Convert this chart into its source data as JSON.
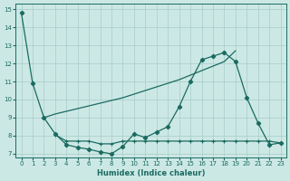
{
  "xlabel": "Humidex (Indice chaleur)",
  "bg_color": "#cce8e5",
  "grid_color": "#a8ccc9",
  "line_color": "#1a6b60",
  "xlim": [
    -0.5,
    23.5
  ],
  "ylim": [
    6.8,
    15.3
  ],
  "xticks": [
    0,
    1,
    2,
    3,
    4,
    5,
    6,
    7,
    8,
    9,
    10,
    11,
    12,
    13,
    14,
    15,
    16,
    17,
    18,
    19,
    20,
    21,
    22,
    23
  ],
  "yticks": [
    7,
    8,
    9,
    10,
    11,
    12,
    13,
    14,
    15
  ],
  "series1_x": [
    0,
    1,
    2,
    3,
    4,
    5,
    6,
    7,
    8,
    9,
    10,
    11,
    12,
    13,
    14,
    15,
    16,
    17,
    18,
    19,
    20,
    21,
    22,
    23
  ],
  "series1_y": [
    14.8,
    10.9,
    9.0,
    8.1,
    7.5,
    7.35,
    7.25,
    7.1,
    7.0,
    7.4,
    8.1,
    7.9,
    8.2,
    8.5,
    9.6,
    11.0,
    12.2,
    12.4,
    12.6,
    12.1,
    10.1,
    8.7,
    7.5,
    7.6
  ],
  "series2_x": [
    2,
    3,
    4,
    5,
    6,
    7,
    8,
    9,
    10,
    11,
    12,
    13,
    14,
    15,
    16,
    17,
    18,
    19
  ],
  "series2_y": [
    9.0,
    9.2,
    9.35,
    9.5,
    9.65,
    9.8,
    9.95,
    10.1,
    10.3,
    10.5,
    10.7,
    10.9,
    11.1,
    11.35,
    11.6,
    11.85,
    12.1,
    12.7
  ],
  "series3_x": [
    3,
    4,
    5,
    6,
    7,
    8,
    9,
    10,
    11,
    12,
    13,
    14,
    15,
    16,
    17,
    18,
    19,
    20,
    21,
    22,
    23
  ],
  "series3_y": [
    8.05,
    7.7,
    7.7,
    7.7,
    7.55,
    7.55,
    7.7,
    7.7,
    7.7,
    7.7,
    7.7,
    7.7,
    7.7,
    7.7,
    7.7,
    7.7,
    7.7,
    7.7,
    7.7,
    7.7,
    7.6
  ]
}
